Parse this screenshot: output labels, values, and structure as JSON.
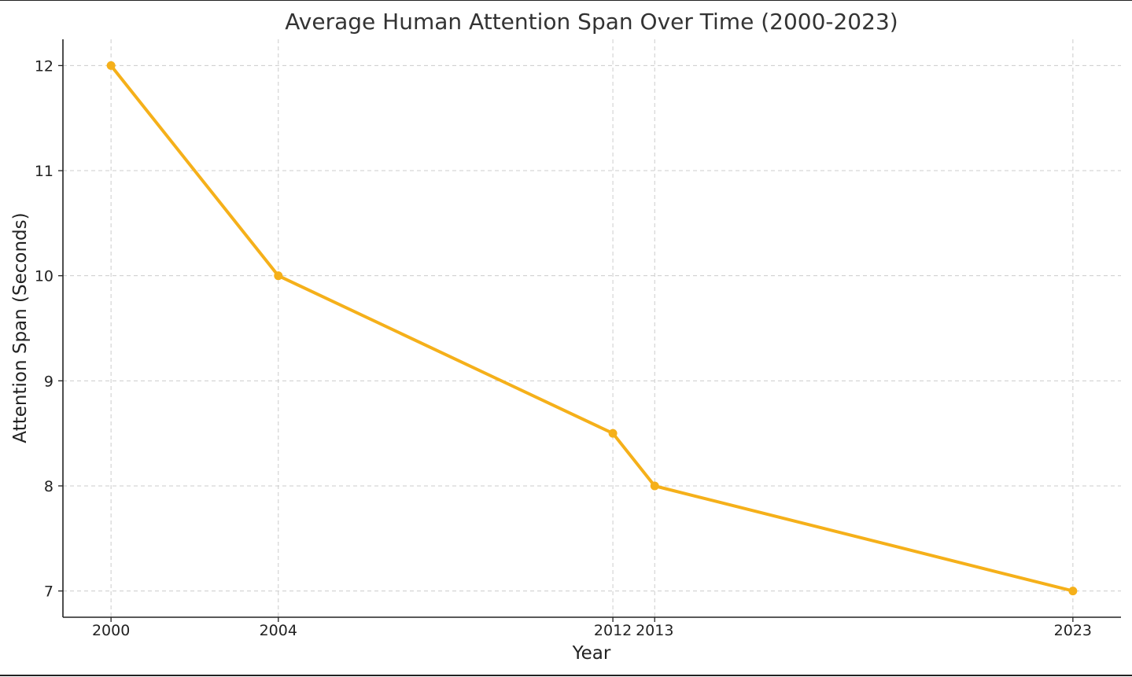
{
  "chart_data": {
    "type": "line",
    "title": "Average Human Attention Span Over Time (2000-2023)",
    "xlabel": "Year",
    "ylabel": "Attention Span (Seconds)",
    "x": [
      2000,
      2004,
      2012,
      2013,
      2023
    ],
    "x_tick_labels": [
      "2000",
      "2004",
      "2012",
      "2013",
      "2023"
    ],
    "y_ticks": [
      7,
      8,
      9,
      10,
      11,
      12
    ],
    "y_tick_labels": [
      "7",
      "8",
      "9",
      "10",
      "11",
      "12"
    ],
    "series": [
      {
        "values": [
          12,
          10,
          8.5,
          8,
          7
        ],
        "color": "#F5B01A"
      }
    ],
    "ylim": [
      6.75,
      12.25
    ],
    "xlim": [
      1998.85,
      2024.15
    ],
    "grid": true,
    "grid_style": "dashed",
    "grid_color": "#cccccc",
    "axis_color": "#222222"
  }
}
